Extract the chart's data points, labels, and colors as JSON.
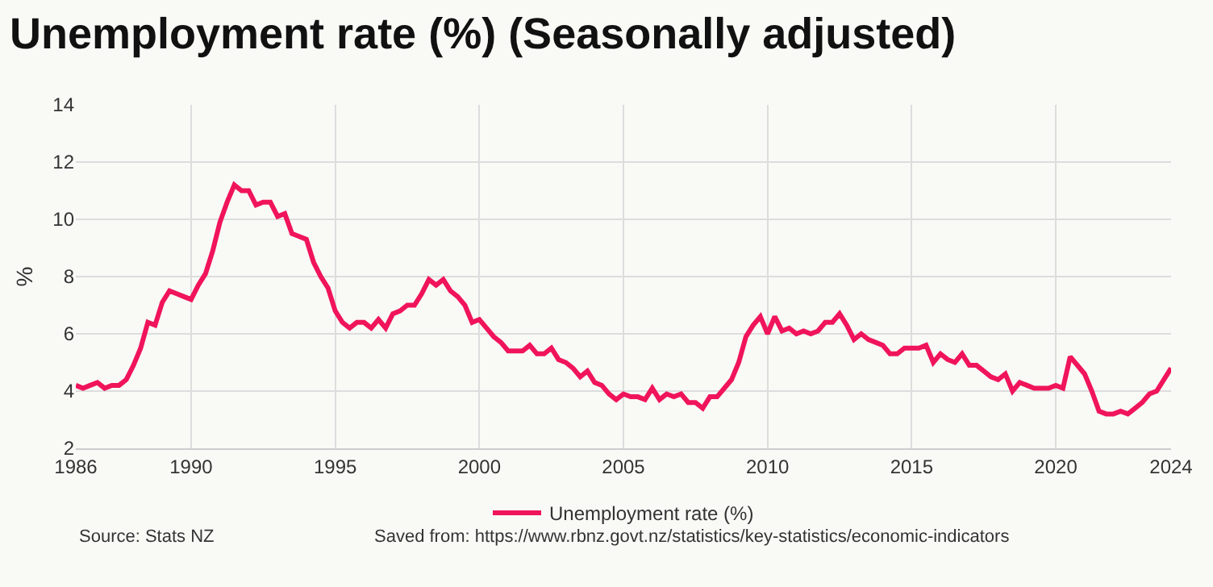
{
  "chart_data": {
    "type": "line",
    "title": "Unemployment rate (%) (Seasonally adjusted)",
    "ylabel": "%",
    "x": [
      1986.0,
      1986.25,
      1986.5,
      1986.75,
      1987.0,
      1987.25,
      1987.5,
      1987.75,
      1988.0,
      1988.25,
      1988.5,
      1988.75,
      1989.0,
      1989.25,
      1989.5,
      1989.75,
      1990.0,
      1990.25,
      1990.5,
      1990.75,
      1991.0,
      1991.25,
      1991.5,
      1991.75,
      1992.0,
      1992.25,
      1992.5,
      1992.75,
      1993.0,
      1993.25,
      1993.5,
      1993.75,
      1994.0,
      1994.25,
      1994.5,
      1994.75,
      1995.0,
      1995.25,
      1995.5,
      1995.75,
      1996.0,
      1996.25,
      1996.5,
      1996.75,
      1997.0,
      1997.25,
      1997.5,
      1997.75,
      1998.0,
      1998.25,
      1998.5,
      1998.75,
      1999.0,
      1999.25,
      1999.5,
      1999.75,
      2000.0,
      2000.25,
      2000.5,
      2000.75,
      2001.0,
      2001.25,
      2001.5,
      2001.75,
      2002.0,
      2002.25,
      2002.5,
      2002.75,
      2003.0,
      2003.25,
      2003.5,
      2003.75,
      2004.0,
      2004.25,
      2004.5,
      2004.75,
      2005.0,
      2005.25,
      2005.5,
      2005.75,
      2006.0,
      2006.25,
      2006.5,
      2006.75,
      2007.0,
      2007.25,
      2007.5,
      2007.75,
      2008.0,
      2008.25,
      2008.5,
      2008.75,
      2009.0,
      2009.25,
      2009.5,
      2009.75,
      2010.0,
      2010.25,
      2010.5,
      2010.75,
      2011.0,
      2011.25,
      2011.5,
      2011.75,
      2012.0,
      2012.25,
      2012.5,
      2012.75,
      2013.0,
      2013.25,
      2013.5,
      2013.75,
      2014.0,
      2014.25,
      2014.5,
      2014.75,
      2015.0,
      2015.25,
      2015.5,
      2015.75,
      2016.0,
      2016.25,
      2016.5,
      2016.75,
      2017.0,
      2017.25,
      2017.5,
      2017.75,
      2018.0,
      2018.25,
      2018.5,
      2018.75,
      2019.0,
      2019.25,
      2019.5,
      2019.75,
      2020.0,
      2020.25,
      2020.5,
      2020.75,
      2021.0,
      2021.25,
      2021.5,
      2021.75,
      2022.0,
      2022.25,
      2022.5,
      2022.75,
      2023.0,
      2023.25,
      2023.5,
      2023.75,
      2024.0
    ],
    "series": [
      {
        "name": "Unemployment rate (%)",
        "color": "#f0145a",
        "values": [
          4.2,
          4.1,
          4.2,
          4.3,
          4.1,
          4.2,
          4.2,
          4.4,
          4.9,
          5.5,
          6.4,
          6.3,
          7.1,
          7.5,
          7.4,
          7.3,
          7.2,
          7.7,
          8.1,
          8.9,
          9.9,
          10.6,
          11.2,
          11.0,
          11.0,
          10.5,
          10.6,
          10.6,
          10.1,
          10.2,
          9.5,
          9.4,
          9.3,
          8.5,
          8.0,
          7.6,
          6.8,
          6.4,
          6.2,
          6.4,
          6.4,
          6.2,
          6.5,
          6.2,
          6.7,
          6.8,
          7.0,
          7.0,
          7.4,
          7.9,
          7.7,
          7.9,
          7.5,
          7.3,
          7.0,
          6.4,
          6.5,
          6.2,
          5.9,
          5.7,
          5.4,
          5.4,
          5.4,
          5.6,
          5.3,
          5.3,
          5.5,
          5.1,
          5.0,
          4.8,
          4.5,
          4.7,
          4.3,
          4.2,
          3.9,
          3.7,
          3.9,
          3.8,
          3.8,
          3.7,
          4.1,
          3.7,
          3.9,
          3.8,
          3.9,
          3.6,
          3.6,
          3.4,
          3.8,
          3.8,
          4.1,
          4.4,
          5.0,
          5.9,
          6.3,
          6.6,
          6.0,
          6.6,
          6.1,
          6.2,
          6.0,
          6.1,
          6.0,
          6.1,
          6.4,
          6.4,
          6.7,
          6.3,
          5.8,
          6.0,
          5.8,
          5.7,
          5.6,
          5.3,
          5.3,
          5.5,
          5.5,
          5.5,
          5.6,
          5.0,
          5.3,
          5.1,
          5.0,
          5.3,
          4.9,
          4.9,
          4.7,
          4.5,
          4.4,
          4.6,
          4.0,
          4.3,
          4.2,
          4.1,
          4.1,
          4.1,
          4.2,
          4.1,
          5.2,
          4.9,
          4.6,
          4.0,
          3.3,
          3.2,
          3.2,
          3.3,
          3.2,
          3.4,
          3.6,
          3.9,
          4.0,
          4.4,
          4.8
        ]
      }
    ],
    "xlim": [
      1986,
      2024
    ],
    "xticks": [
      1986,
      1990,
      1995,
      2000,
      2005,
      2010,
      2015,
      2020,
      2024
    ],
    "ylim": [
      2,
      14
    ],
    "yticks": [
      2,
      4,
      6,
      8,
      10,
      12,
      14
    ],
    "grid": true,
    "legend": "bottom",
    "marker": "none",
    "line_style": "solid",
    "annotations": [
      "Source: Stats NZ",
      "Saved from: https://www.rbnz.govt.nz/statistics/key-statistics/economic-indicators"
    ]
  }
}
